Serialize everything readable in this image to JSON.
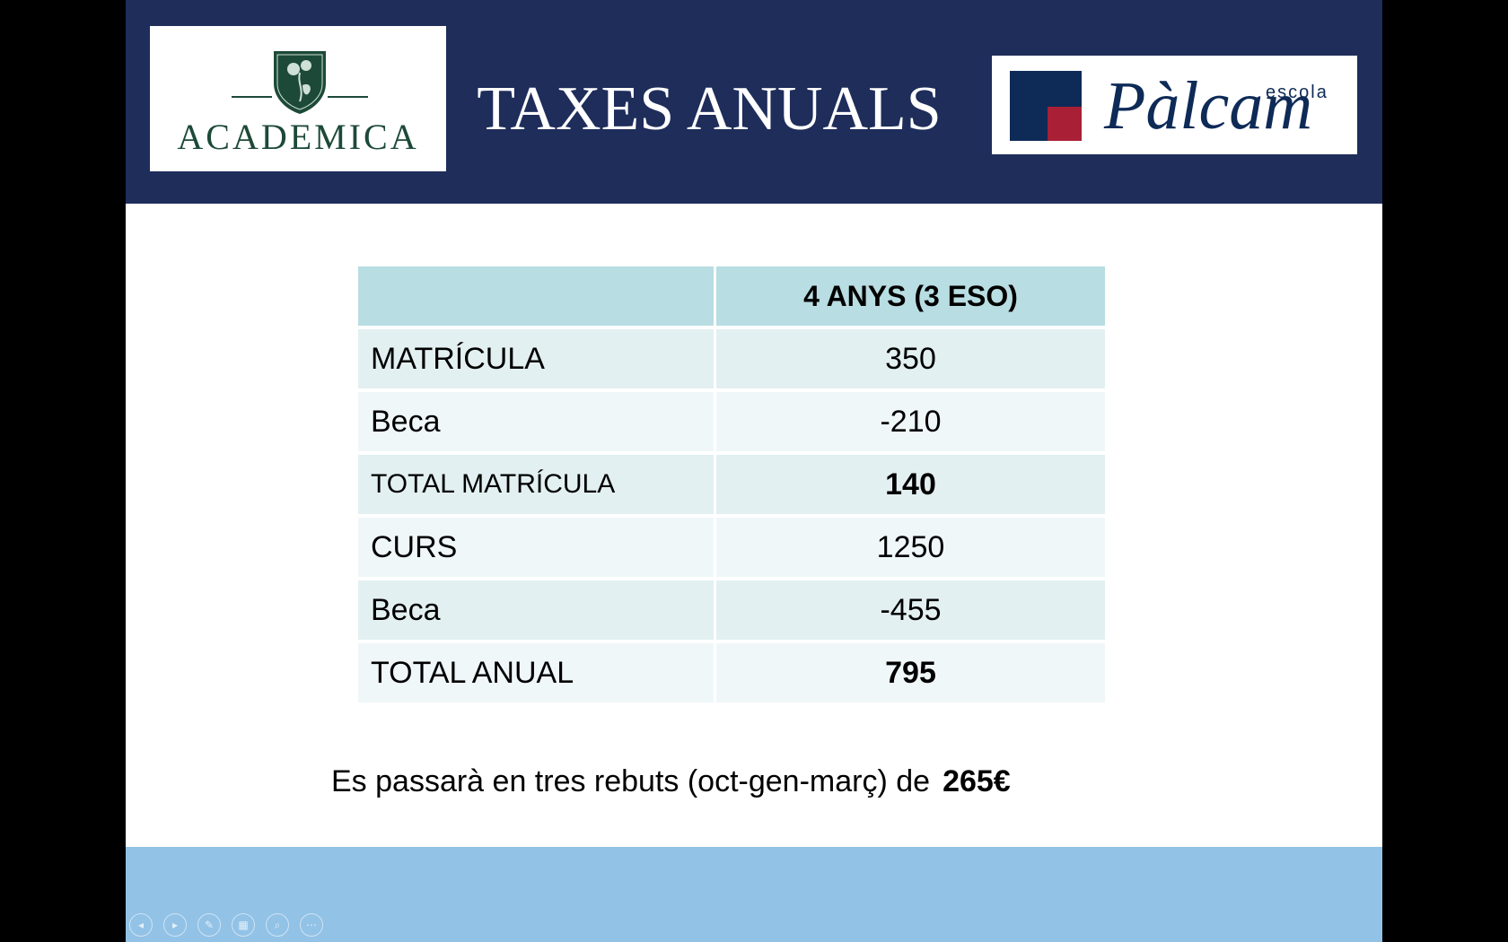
{
  "slide": {
    "title": "TAXES ANUALS",
    "logo_left_text": "ACADEMICA",
    "logo_right": {
      "small": "escola",
      "brand": "Pàlcam"
    }
  },
  "table": {
    "header": [
      "",
      "4 ANYS  (3 ESO)"
    ],
    "rows": [
      {
        "label": "MATRÍCULA",
        "value": "350"
      },
      {
        "label": "Beca",
        "value": "-210"
      },
      {
        "label": "TOTAL MATRÍCULA",
        "value": "140"
      },
      {
        "label": "CURS",
        "value": "1250"
      },
      {
        "label": "Beca",
        "value": "-455"
      },
      {
        "label": "TOTAL ANUAL",
        "value": "795"
      }
    ]
  },
  "note": {
    "text": "Es passarà en tres rebuts (oct-gen-març) de",
    "amount": "265€"
  },
  "controls": {
    "icons": [
      "previous-slide-icon",
      "next-slide-icon",
      "pen-icon",
      "slides-grid-icon",
      "zoom-icon",
      "more-options-icon"
    ],
    "glyphs": [
      "◂",
      "▸",
      "✎",
      "▦",
      "⌕",
      "⋯"
    ]
  },
  "colors": {
    "header_bg": "#1e2d5a",
    "table_header": "#b8dde2",
    "row_odd": "#e3f0f2",
    "row_even": "#f0f7f9",
    "footer_bg": "#92c2e6",
    "academica_green": "#1d4a38",
    "palcam_navy": "#0e2a57",
    "palcam_red": "#a81f36"
  }
}
